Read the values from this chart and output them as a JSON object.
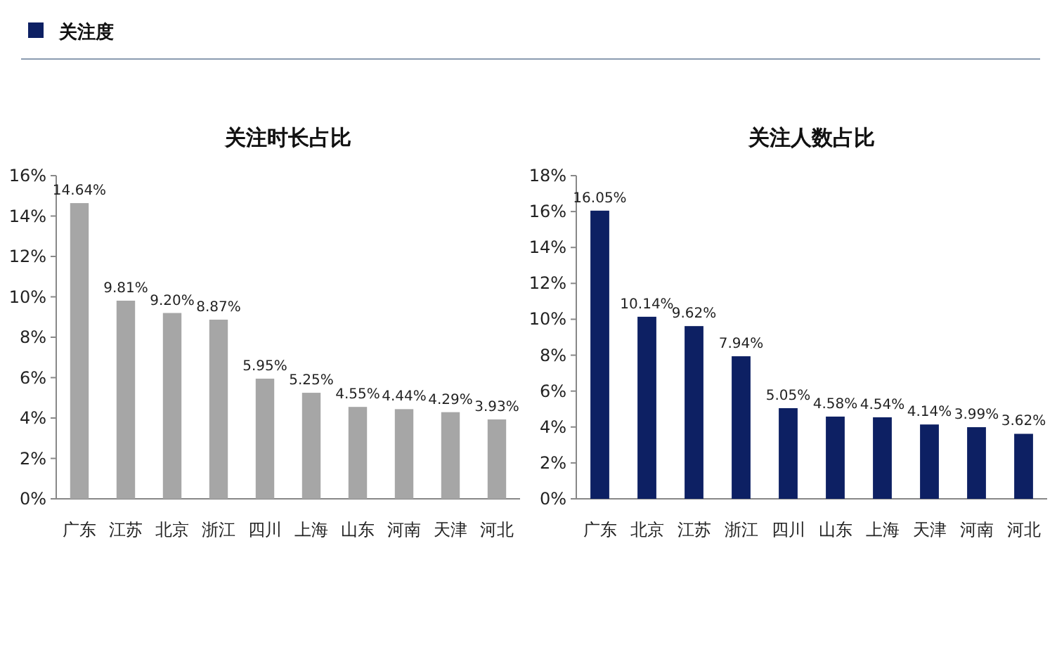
{
  "chart_data": [
    {
      "type": "other",
      "title": "关注度"
    },
    {
      "type": "bar",
      "title": "关注时长占比",
      "categories": [
        "广东",
        "江苏",
        "北京",
        "浙江",
        "四川",
        "上海",
        "山东",
        "河南",
        "天津",
        "河北"
      ],
      "values": [
        14.64,
        9.81,
        9.2,
        8.87,
        5.95,
        5.25,
        4.55,
        4.44,
        4.29,
        3.93
      ],
      "value_labels": [
        "14.64%",
        "9.81%",
        "9.20%",
        "8.87%",
        "5.95%",
        "5.25%",
        "4.55%",
        "4.44%",
        "4.29%",
        "3.93%"
      ],
      "color": "#a6a6a6",
      "ylim": [
        0,
        16
      ],
      "yticks": [
        {
          "value": 0,
          "label": "0%"
        },
        {
          "value": 2,
          "label": "2%"
        },
        {
          "value": 4,
          "label": "4%"
        },
        {
          "value": 6,
          "label": "6%"
        },
        {
          "value": 8,
          "label": "8%"
        },
        {
          "value": 10,
          "label": "10%"
        },
        {
          "value": 12,
          "label": "12%"
        },
        {
          "value": 14,
          "label": "14%"
        },
        {
          "value": 16,
          "label": "16%"
        }
      ]
    },
    {
      "type": "bar",
      "title": "关注人数占比",
      "categories": [
        "广东",
        "北京",
        "江苏",
        "浙江",
        "四川",
        "山东",
        "上海",
        "天津",
        "河南",
        "河北"
      ],
      "values": [
        16.05,
        10.14,
        9.62,
        7.94,
        5.05,
        4.58,
        4.54,
        4.14,
        3.99,
        3.62
      ],
      "value_labels": [
        "16.05%",
        "10.14%",
        "9.62%",
        "7.94%",
        "5.05%",
        "4.58%",
        "4.54%",
        "4.14%",
        "3.99%",
        "3.62%"
      ],
      "color": "#0d2063",
      "ylim": [
        0,
        18
      ],
      "yticks": [
        {
          "value": 0,
          "label": "0%"
        },
        {
          "value": 2,
          "label": "2%"
        },
        {
          "value": 4,
          "label": "4%"
        },
        {
          "value": 6,
          "label": "6%"
        },
        {
          "value": 8,
          "label": "8%"
        },
        {
          "value": 10,
          "label": "10%"
        },
        {
          "value": 12,
          "label": "12%"
        },
        {
          "value": 14,
          "label": "14%"
        },
        {
          "value": 16,
          "label": "16%"
        },
        {
          "value": 18,
          "label": "18%"
        }
      ]
    }
  ]
}
